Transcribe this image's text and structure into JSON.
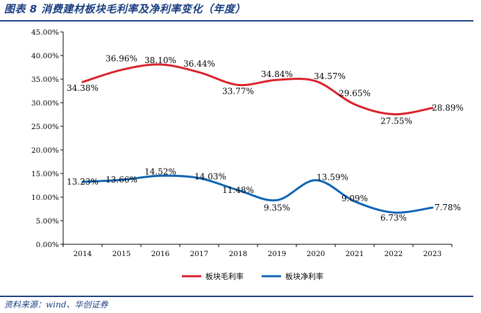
{
  "header": {
    "title": "图表 8 消费建材板块毛利率及净利率变化（年度）"
  },
  "footer": {
    "source": "资料来源：wind、华创证券"
  },
  "chart_data": {
    "type": "line",
    "title": "",
    "xlabel": "",
    "ylabel": "",
    "categories": [
      "2014",
      "2015",
      "2016",
      "2017",
      "2018",
      "2019",
      "2020",
      "2021",
      "2022",
      "2023"
    ],
    "yticks": [
      "0.00%",
      "5.00%",
      "10.00%",
      "15.00%",
      "20.00%",
      "25.00%",
      "30.00%",
      "35.00%",
      "40.00%",
      "45.00%"
    ],
    "ylim": [
      0,
      45
    ],
    "grid": false,
    "legend_position": "bottom",
    "series": [
      {
        "name": "板块毛利率",
        "color": "#d9202a",
        "values": [
          34.38,
          36.96,
          38.1,
          36.44,
          33.77,
          34.84,
          34.57,
          29.65,
          27.55,
          28.89
        ],
        "labels": [
          "34.38%",
          "36.96%",
          "38.10%",
          "36.44%",
          "33.77%",
          "34.84%",
          "34.57%",
          "29.65%",
          "27.55%",
          "28.89%"
        ]
      },
      {
        "name": "板块净利率",
        "color": "#0e64b4",
        "values": [
          13.23,
          13.66,
          14.52,
          14.03,
          11.48,
          9.35,
          13.59,
          9.09,
          6.73,
          7.78
        ],
        "labels": [
          "13.23%",
          "13.66%",
          "14.52%",
          "14.03%",
          "11.48%",
          "9.35%",
          "13.59%",
          "9.09%",
          "6.73%",
          "7.78%"
        ]
      }
    ]
  }
}
